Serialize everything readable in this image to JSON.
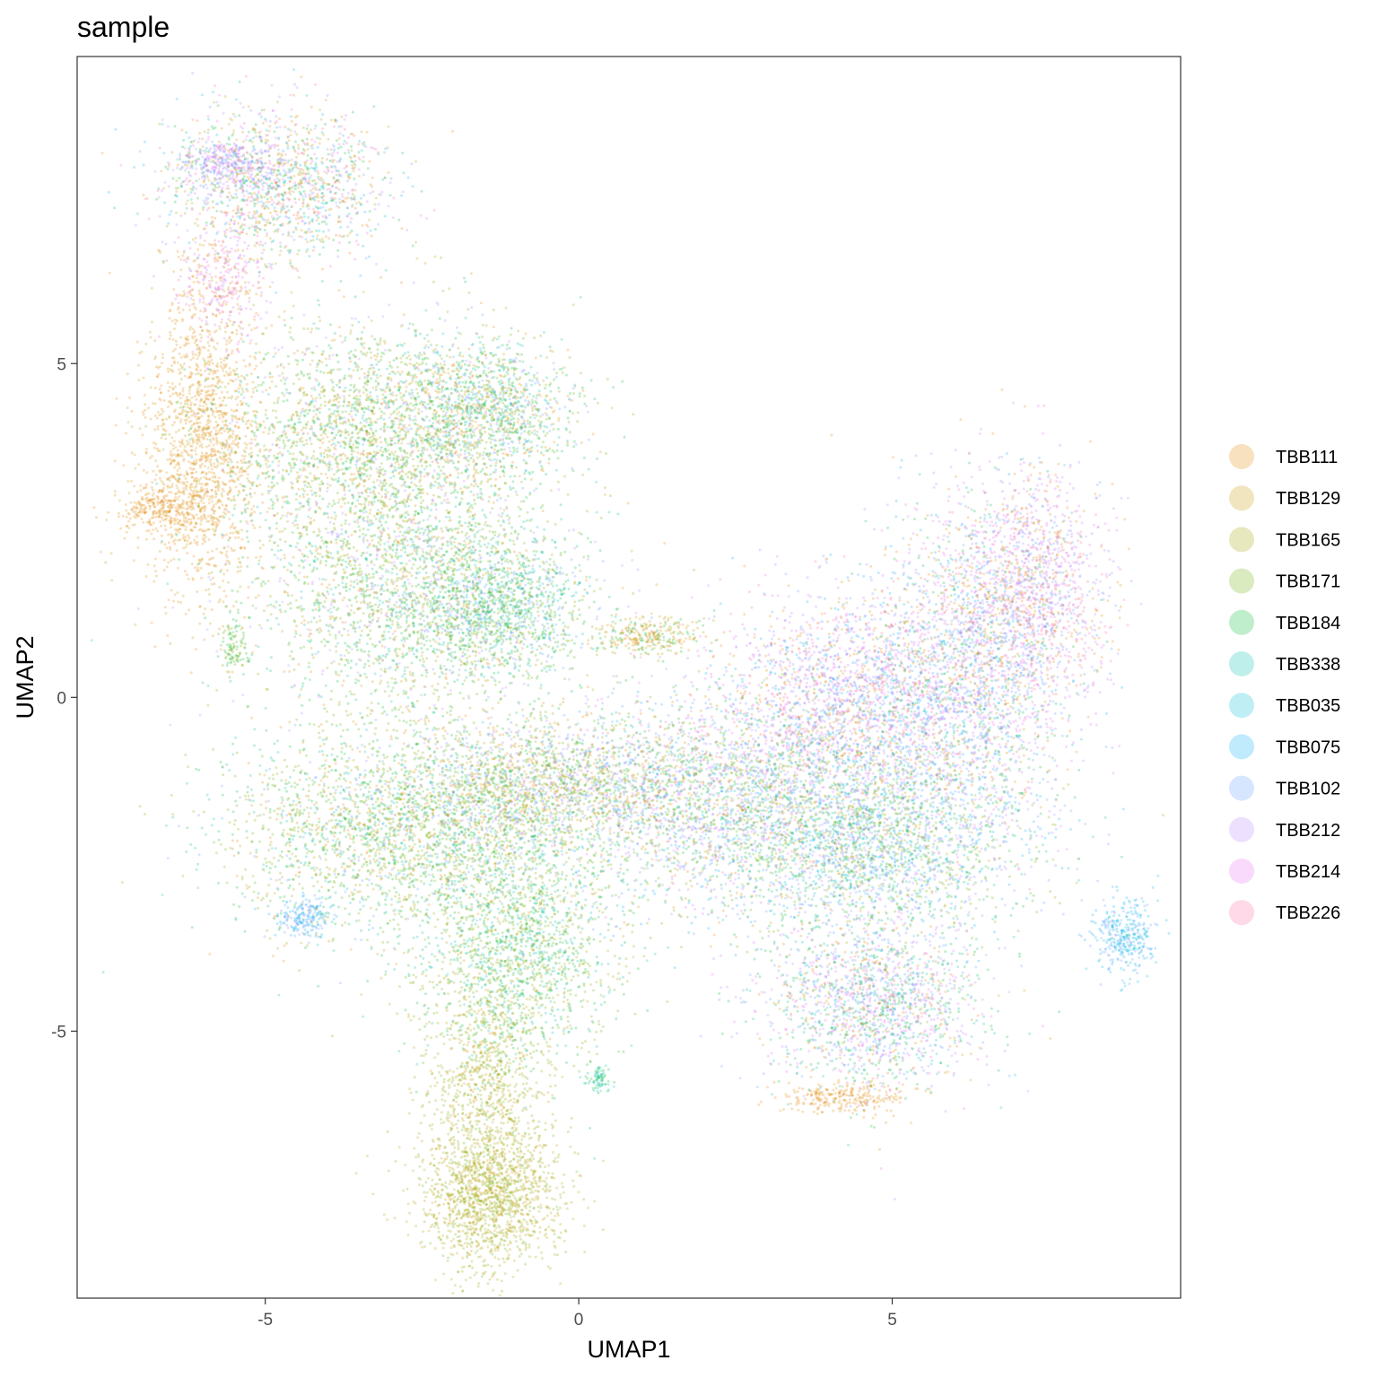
{
  "chart_data": {
    "type": "scatter",
    "title": "sample",
    "xlabel": "UMAP1",
    "ylabel": "UMAP2",
    "xlim": [
      -8.0,
      9.6
    ],
    "ylim": [
      -9.0,
      9.6
    ],
    "x_ticks": [
      -5,
      0,
      5
    ],
    "y_ticks": [
      -5,
      0,
      5
    ],
    "x_tick_labels": [
      "-5",
      "0",
      "5"
    ],
    "y_tick_labels": [
      "-5",
      "0",
      "5"
    ],
    "grid": false,
    "legend_position": "right",
    "point_alpha": 0.25,
    "series": [
      {
        "name": "TBB111",
        "color": "#E58700"
      },
      {
        "name": "TBB129",
        "color": "#C99800"
      },
      {
        "name": "TBB165",
        "color": "#A3A500"
      },
      {
        "name": "TBB171",
        "color": "#6BB100"
      },
      {
        "name": "TBB184",
        "color": "#00BA38"
      },
      {
        "name": "TBB338",
        "color": "#00C0AF"
      },
      {
        "name": "TBB035",
        "color": "#00BCD8"
      },
      {
        "name": "TBB075",
        "color": "#00B0F6"
      },
      {
        "name": "TBB102",
        "color": "#619CFF"
      },
      {
        "name": "TBB212",
        "color": "#B983FF"
      },
      {
        "name": "TBB214",
        "color": "#E76BF3"
      },
      {
        "name": "TBB226",
        "color": "#FF67A4"
      }
    ],
    "clusters": [
      {
        "cx": -4.8,
        "cy": 7.7,
        "sx": 0.9,
        "sy": 0.55,
        "n": 1500,
        "mix": [
          0,
          0,
          1,
          2,
          4,
          5,
          7,
          8,
          9,
          10,
          11,
          4
        ]
      },
      {
        "cx": -5.6,
        "cy": 8.0,
        "sx": 0.35,
        "sy": 0.2,
        "n": 300,
        "mix": [
          9,
          8,
          10
        ]
      },
      {
        "cx": -5.7,
        "cy": 6.2,
        "sx": 0.35,
        "sy": 0.5,
        "n": 350,
        "mix": [
          10,
          9,
          11,
          0
        ]
      },
      {
        "cx": -6.0,
        "cy": 3.8,
        "sx": 0.45,
        "sy": 1.1,
        "n": 1500,
        "mix": [
          0,
          0,
          0,
          1
        ]
      },
      {
        "cx": -6.6,
        "cy": 2.8,
        "sx": 0.4,
        "sy": 0.2,
        "n": 300,
        "mix": [
          0
        ]
      },
      {
        "cx": -3.3,
        "cy": 3.9,
        "sx": 1.2,
        "sy": 0.85,
        "n": 2600,
        "mix": [
          3,
          4,
          0,
          2,
          5,
          9,
          3,
          4,
          1
        ]
      },
      {
        "cx": -1.5,
        "cy": 4.3,
        "sx": 0.7,
        "sy": 0.5,
        "n": 1200,
        "mix": [
          4,
          3,
          5,
          8,
          0
        ]
      },
      {
        "cx": -2.6,
        "cy": 1.5,
        "sx": 1.3,
        "sy": 0.9,
        "n": 2500,
        "mix": [
          3,
          4,
          0,
          2,
          5,
          9,
          3,
          4
        ]
      },
      {
        "cx": -1.2,
        "cy": 1.4,
        "sx": 0.7,
        "sy": 0.5,
        "n": 1000,
        "mix": [
          4,
          5,
          3,
          8
        ]
      },
      {
        "cx": 1.1,
        "cy": 0.9,
        "sx": 0.4,
        "sy": 0.15,
        "n": 300,
        "mix": [
          0,
          1,
          4,
          2
        ]
      },
      {
        "cx": -2.6,
        "cy": -2.0,
        "sx": 1.5,
        "sy": 0.8,
        "n": 3000,
        "mix": [
          3,
          4,
          2,
          0,
          5,
          8,
          3,
          4
        ]
      },
      {
        "cx": -0.5,
        "cy": -1.3,
        "sx": 1.2,
        "sy": 0.5,
        "n": 1800,
        "mix": [
          0,
          8,
          9,
          3,
          4,
          2
        ]
      },
      {
        "cx": -1.0,
        "cy": -3.8,
        "sx": 0.8,
        "sy": 0.8,
        "n": 1700,
        "mix": [
          4,
          5,
          3,
          2
        ]
      },
      {
        "cx": -1.5,
        "cy": -5.8,
        "sx": 0.5,
        "sy": 0.8,
        "n": 900,
        "mix": [
          2,
          3,
          1
        ]
      },
      {
        "cx": -1.4,
        "cy": -7.5,
        "sx": 0.55,
        "sy": 0.55,
        "n": 1500,
        "mix": [
          2,
          2,
          3,
          1
        ]
      },
      {
        "cx": 2.3,
        "cy": -1.5,
        "sx": 1.3,
        "sy": 0.8,
        "n": 2400,
        "mix": [
          8,
          9,
          4,
          3,
          7,
          10,
          0
        ]
      },
      {
        "cx": 4.3,
        "cy": 0.0,
        "sx": 1.1,
        "sy": 0.8,
        "n": 2200,
        "mix": [
          10,
          9,
          8,
          0,
          11,
          7
        ]
      },
      {
        "cx": 6.2,
        "cy": 0.2,
        "sx": 0.8,
        "sy": 1.3,
        "n": 2200,
        "mix": [
          0,
          8,
          9,
          10,
          7,
          4
        ]
      },
      {
        "cx": 7.2,
        "cy": 1.6,
        "sx": 0.6,
        "sy": 0.9,
        "n": 1500,
        "mix": [
          10,
          11,
          9,
          8,
          0
        ]
      },
      {
        "cx": 4.6,
        "cy": -2.2,
        "sx": 1.3,
        "sy": 0.7,
        "n": 2600,
        "mix": [
          4,
          3,
          8,
          9,
          7,
          2,
          5
        ]
      },
      {
        "cx": 4.7,
        "cy": -4.6,
        "sx": 0.85,
        "sy": 0.65,
        "n": 1800,
        "mix": [
          4,
          5,
          0,
          10,
          9,
          8
        ]
      },
      {
        "cx": 4.2,
        "cy": -6.0,
        "sx": 0.5,
        "sy": 0.12,
        "n": 250,
        "mix": [
          0
        ]
      },
      {
        "cx": 8.7,
        "cy": -3.6,
        "sx": 0.25,
        "sy": 0.3,
        "n": 350,
        "mix": [
          7,
          8,
          6
        ]
      },
      {
        "cx": -4.4,
        "cy": -3.3,
        "sx": 0.2,
        "sy": 0.15,
        "n": 200,
        "mix": [
          7,
          8
        ]
      },
      {
        "cx": 0.3,
        "cy": -5.7,
        "sx": 0.1,
        "sy": 0.1,
        "n": 80,
        "mix": [
          5,
          4
        ]
      },
      {
        "cx": -5.5,
        "cy": 0.7,
        "sx": 0.1,
        "sy": 0.2,
        "n": 100,
        "mix": [
          3,
          4
        ]
      }
    ]
  }
}
